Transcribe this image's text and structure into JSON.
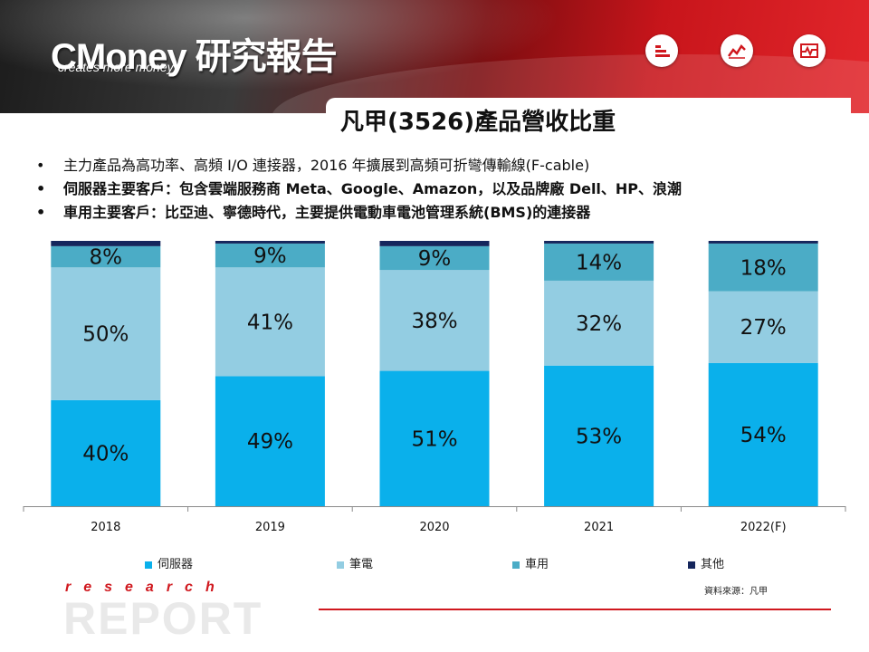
{
  "header": {
    "logo_main": "CMoney 研究報告",
    "logo_sub": "creates more money",
    "icons": [
      "bars-icon",
      "line-trend-icon",
      "pulse-chart-icon"
    ]
  },
  "title": "凡甲(3526)產品營收比重",
  "bullets": [
    {
      "text": "主力產品為高功率、高頻 I/O 連接器，2016 年擴展到高頻可折彎傳輸線(F-cable)",
      "bold": false
    },
    {
      "text": "伺服器主要客戶：包含雲端服務商 Meta、Google、Amazon，以及品牌廠 Dell、HP、浪潮",
      "bold": true
    },
    {
      "text": "車用主要客戶：比亞迪、寧德時代，主要提供電動車電池管理系統(BMS)的連接器",
      "bold": true
    }
  ],
  "bullet_symbol": "•",
  "chart_data": {
    "type": "bar",
    "stacked": true,
    "categories": [
      "2018",
      "2019",
      "2020",
      "2021",
      "2022(F)"
    ],
    "series": [
      {
        "name": "伺服器",
        "values": [
          40,
          49,
          51,
          53,
          54
        ],
        "labels": [
          "40%",
          "49%",
          "51%",
          "53%",
          "54%"
        ],
        "color": "#0ab0eb"
      },
      {
        "name": "筆電",
        "values": [
          50,
          41,
          38,
          32,
          27
        ],
        "labels": [
          "50%",
          "41%",
          "38%",
          "32%",
          "27%"
        ],
        "color": "#93cde2"
      },
      {
        "name": "車用",
        "values": [
          8,
          9,
          9,
          14,
          18
        ],
        "labels": [
          "8%",
          "9%",
          "9%",
          "14%",
          "18%"
        ],
        "color": "#4bacc6"
      },
      {
        "name": "其他",
        "values": [
          2,
          1,
          2,
          1,
          1
        ],
        "color": "#15265c"
      }
    ],
    "ylim": [
      0,
      100
    ],
    "grid": false,
    "legend": "bottom"
  },
  "source": "資料來源：凡甲",
  "footer": {
    "research": "research",
    "report": "REPORT"
  },
  "colors": {
    "brand_red": "#d0181e",
    "banner_dark": "#2b2b2b"
  }
}
